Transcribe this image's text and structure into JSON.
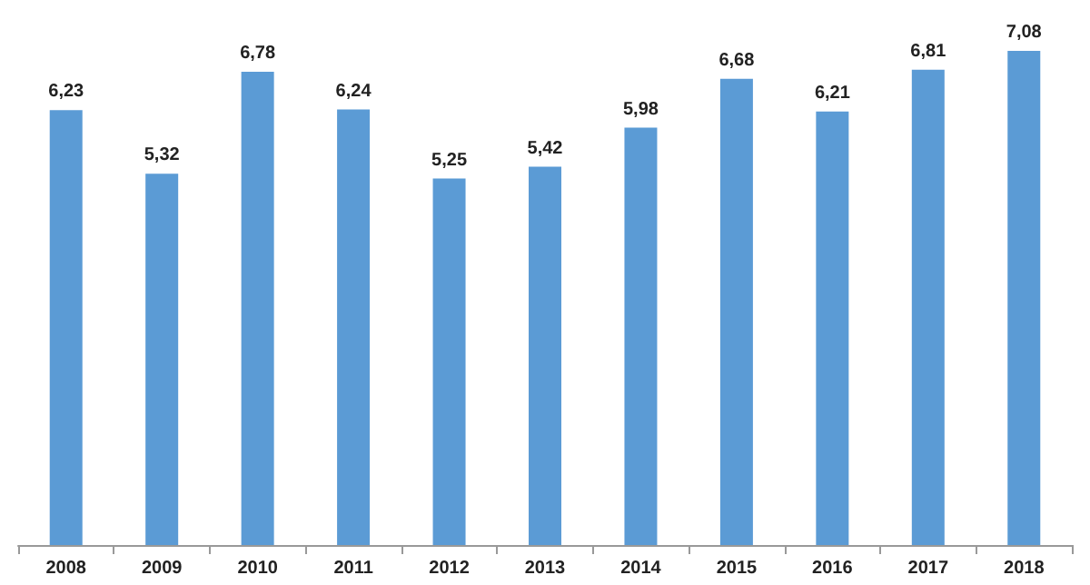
{
  "chart_data": {
    "type": "bar",
    "categories": [
      "2008",
      "2009",
      "2010",
      "2011",
      "2012",
      "2013",
      "2014",
      "2015",
      "2016",
      "2017",
      "2018"
    ],
    "values": [
      6.23,
      5.32,
      6.78,
      6.24,
      5.25,
      5.42,
      5.98,
      6.68,
      6.21,
      6.81,
      7.08
    ],
    "value_labels": [
      "6,23",
      "5,32",
      "6,78",
      "6,24",
      "5,25",
      "5,42",
      "5,98",
      "6,68",
      "6,21",
      "6,81",
      "7,08"
    ],
    "color": "#5b9bd5"
  }
}
